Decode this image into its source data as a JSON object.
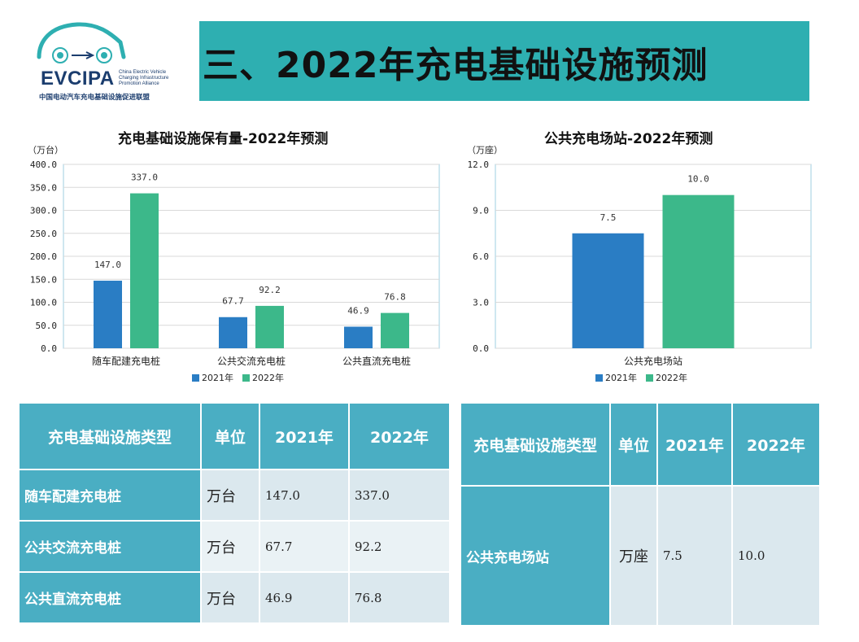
{
  "logo": {
    "brand": "EVCIPA",
    "english": [
      "China Electric Vehicle",
      "Charging Infrastructure",
      "Promotion Alliance"
    ],
    "chinese": "中国电动汽车充电基础设施促进联盟"
  },
  "title": "三、2022年充电基础设施预测",
  "colors": {
    "y2021": "#2a7dc4",
    "y2022": "#3cb88a",
    "banner": "#2eafb1",
    "table_header": "#4aaec3"
  },
  "legend": {
    "y2021": "2021年",
    "y2022": "2022年"
  },
  "chart_data": [
    {
      "type": "bar",
      "title": "充电基础设施保有量-2022年预测",
      "unit": "（万台）",
      "categories": [
        "随车配建充电桩",
        "公共交流充电桩",
        "公共直流充电桩"
      ],
      "series": [
        {
          "name": "2021年",
          "values": [
            147.0,
            67.7,
            46.9
          ]
        },
        {
          "name": "2022年",
          "values": [
            337.0,
            92.2,
            76.8
          ]
        }
      ],
      "value_labels": [
        [
          "147.0",
          "67.7",
          "46.9"
        ],
        [
          "337.0",
          "92.2",
          "76.8"
        ]
      ],
      "yticks": [
        "0.0",
        "50.0",
        "100.0",
        "150.0",
        "200.0",
        "250.0",
        "300.0",
        "350.0",
        "400.0"
      ],
      "ylim": [
        0,
        400
      ],
      "grid": true,
      "legend_position": "bottom"
    },
    {
      "type": "bar",
      "title": "公共充电场站-2022年预测",
      "unit": "（万座）",
      "categories": [
        "公共充电场站"
      ],
      "series": [
        {
          "name": "2021年",
          "values": [
            7.5
          ]
        },
        {
          "name": "2022年",
          "values": [
            10.0
          ]
        }
      ],
      "value_labels": [
        [
          "7.5"
        ],
        [
          "10.0"
        ]
      ],
      "yticks": [
        "0.0",
        "3.0",
        "6.0",
        "9.0",
        "12.0"
      ],
      "ylim": [
        0,
        12
      ],
      "grid": true,
      "legend_position": "bottom"
    }
  ],
  "table1": {
    "headers": [
      "充电基础设施类型",
      "单位",
      "2021年",
      "2022年"
    ],
    "rows": [
      [
        "随车配建充电桩",
        "万台",
        "147.0",
        "337.0"
      ],
      [
        "公共交流充电桩",
        "万台",
        "67.7",
        "92.2"
      ],
      [
        "公共直流充电桩",
        "万台",
        "46.9",
        "76.8"
      ]
    ]
  },
  "table2": {
    "headers": [
      "充电基础设施类型",
      "单位",
      "2021年",
      "2022年"
    ],
    "rows": [
      [
        "公共充电场站",
        "万座",
        "7.5",
        "10.0"
      ]
    ]
  }
}
